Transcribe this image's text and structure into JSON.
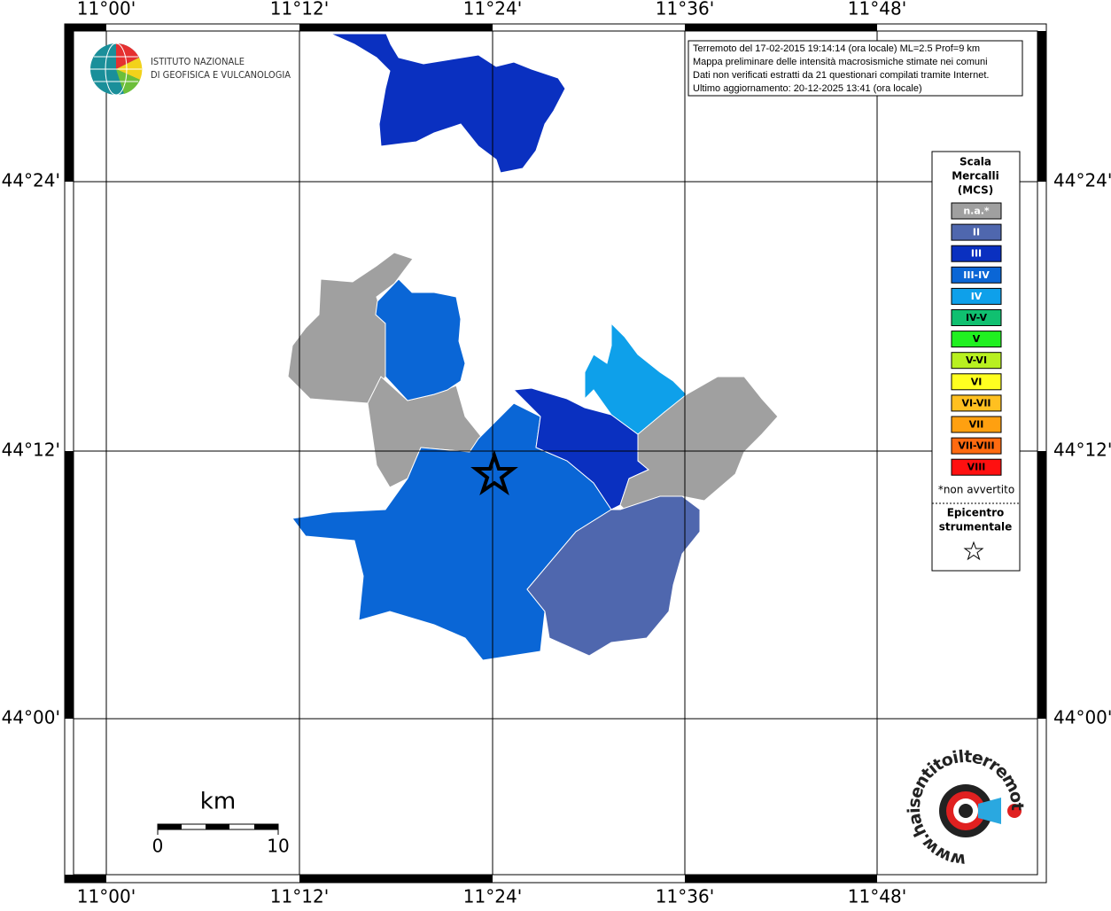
{
  "logo": {
    "line1": "ISTITUTO NAZIONALE",
    "line2": "DI GEOFISICA E VULCANOLOGIA"
  },
  "info": [
    "Terremoto del 17-02-2015 19:14:14 (ora locale) ML=2.5 Prof=9 km",
    "Mappa preliminare delle intensità macrosismiche stimate nei comuni",
    "Dati non verificati estratti da 21 questionari compilati tramite Internet.",
    "Ultimo aggiornamento: 20-12-2025 13:41 (ora locale)"
  ],
  "longitudes": [
    "11°00'",
    "11°12'",
    "11°24'",
    "11°36'",
    "11°48'"
  ],
  "latitudes": [
    "44°24'",
    "44°12'",
    "44°00'"
  ],
  "legend": {
    "title": [
      "Scala",
      "Mercalli",
      "(MCS)"
    ],
    "items": [
      {
        "label": "n.a.*",
        "color": "#a0a0a0",
        "text_color": "#ffffff"
      },
      {
        "label": "II",
        "color": "#4f67ae",
        "text_color": "#ffffff"
      },
      {
        "label": "III",
        "color": "#0a30c0",
        "text_color": "#ffffff"
      },
      {
        "label": "III-IV",
        "color": "#0a66d6",
        "text_color": "#ffffff"
      },
      {
        "label": "IV",
        "color": "#0ea0ea",
        "text_color": "#ffffff"
      },
      {
        "label": "IV-V",
        "color": "#10c070",
        "text_color": "#000000"
      },
      {
        "label": "V",
        "color": "#20f020",
        "text_color": "#000000"
      },
      {
        "label": "V-VI",
        "color": "#b8f020",
        "text_color": "#000000"
      },
      {
        "label": "VI",
        "color": "#ffff20",
        "text_color": "#000000"
      },
      {
        "label": "VI-VII",
        "color": "#ffc020",
        "text_color": "#000000"
      },
      {
        "label": "VII",
        "color": "#ffa010",
        "text_color": "#000000"
      },
      {
        "label": "VII-VIII",
        "color": "#ff6a10",
        "text_color": "#000000"
      },
      {
        "label": "VIII",
        "color": "#ff1010",
        "text_color": "#000000"
      }
    ],
    "note": "*non avvertito",
    "epicenter": [
      "Epicentro",
      "strumentale"
    ]
  },
  "scale_bar": {
    "unit": "km",
    "start": "0",
    "end": "10"
  },
  "site": "www.haisentitoilterremoto.it"
}
